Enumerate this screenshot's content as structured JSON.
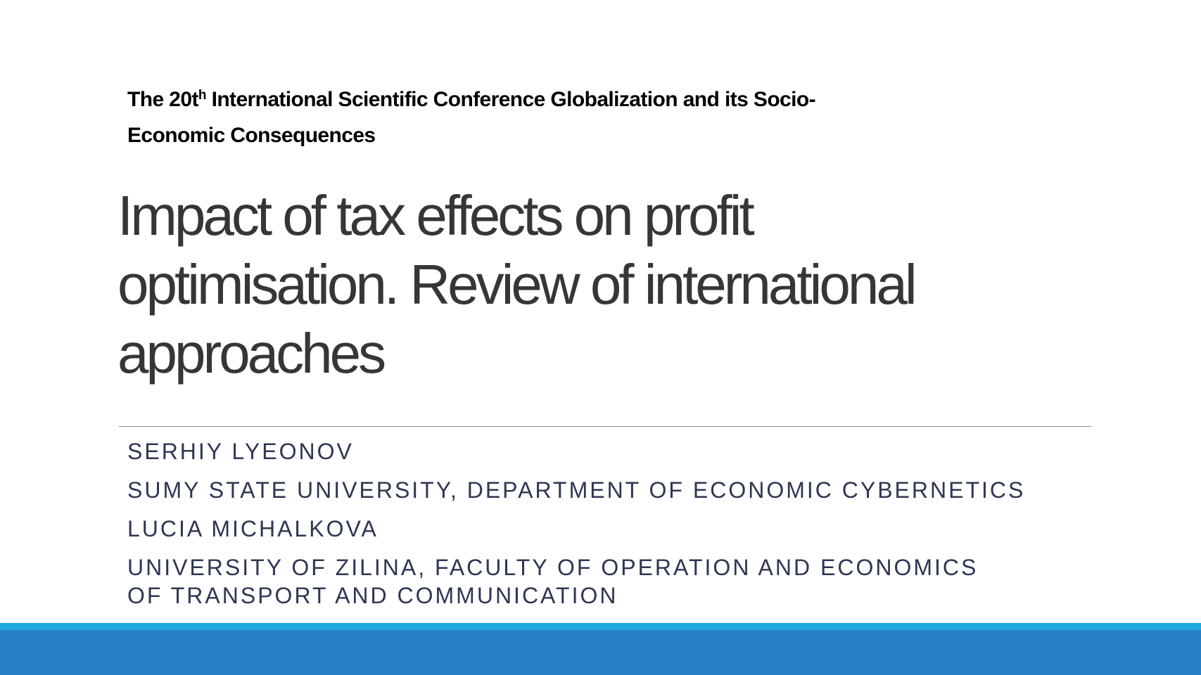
{
  "conference": {
    "line1_prefix": "The 20t",
    "line1_sup": "h",
    "line1_suffix": " International Scientific Conference Globalization and its Socio-",
    "line2": "Economic Consequences"
  },
  "title": {
    "line1": "Impact of tax effects on profit",
    "line2": "optimisation. Review of international",
    "line3": "approaches"
  },
  "authors": [
    "SERHIY LYEONOV",
    "SUMY STATE UNIVERSITY, DEPARTMENT OF ECONOMIC CYBERNETICS",
    "LUCIA MICHALKOVA",
    "UNIVERSITY OF ZILINA, FACULTY OF OPERATION AND ECONOMICS",
    "OF TRANSPORT AND COMMUNICATION"
  ],
  "colors": {
    "accent_light": "#1fa8e0",
    "accent_dark": "#2681c4",
    "title": "#363636",
    "authors": "#2d3653"
  }
}
